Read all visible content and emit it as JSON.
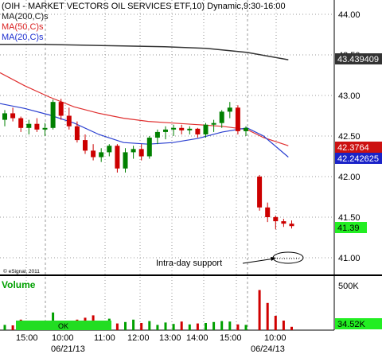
{
  "header": {
    "title": "(OIH - MARKET VECTORS OIL SERVICES ETF,10) Dynamic,9:30-16:00",
    "ma200_label": "MA(200,C)s",
    "ma50_label": "MA(50,C)s",
    "ma20_label": "MA(20,C)s"
  },
  "colors": {
    "background": "#ffffff",
    "grid": "#9a9a9a",
    "up_candle": "#008000",
    "down_candle": "#cc0000",
    "ma200": "#333333",
    "ma50": "#e03030",
    "ma20": "#2a3fd0",
    "volume_up": "#00a000",
    "volume_down": "#d00000",
    "ok_bar": "#22dd22",
    "last_price_bg": "#22ee22"
  },
  "price_axis": {
    "ticks": [
      "44.00",
      "43.50",
      "43.00",
      "42.50",
      "42.00",
      "41.50",
      "41.00"
    ],
    "ma200_value": "43.439409",
    "ma50_value": "42.3764",
    "ma20_value": "42.242625",
    "last_price": "41.39"
  },
  "annotations": {
    "support_label": "Intra-day support",
    "copyright": "© eSignal, 2011"
  },
  "volume": {
    "label": "Volume",
    "axis_top": "500K",
    "last_value": "34.52K",
    "ok_label": "OK"
  },
  "time_axis": {
    "ticks": [
      "15:00",
      "10:00",
      "11:00",
      "12:00",
      "13:00",
      "14:00",
      "15:00",
      "10:00"
    ],
    "dates": [
      "06/21/13",
      "06/24/13"
    ]
  },
  "chart_data": {
    "type": "candlestick",
    "title": "(OIH - MARKET VECTORS OIL SERVICES ETF,10) Dynamic,9:30-16:00",
    "ylim": [
      40.75,
      44.2
    ],
    "candles": [
      {
        "o": 42.7,
        "h": 42.82,
        "l": 42.62,
        "c": 42.78
      },
      {
        "o": 42.78,
        "h": 42.85,
        "l": 42.68,
        "c": 42.72
      },
      {
        "o": 42.72,
        "h": 42.74,
        "l": 42.55,
        "c": 42.6
      },
      {
        "o": 42.6,
        "h": 42.7,
        "l": 42.52,
        "c": 42.65
      },
      {
        "o": 42.65,
        "h": 42.72,
        "l": 42.55,
        "c": 42.58
      },
      {
        "o": 42.58,
        "h": 42.66,
        "l": 42.5,
        "c": 42.6
      },
      {
        "o": 42.6,
        "h": 42.95,
        "l": 42.58,
        "c": 42.92
      },
      {
        "o": 42.92,
        "h": 42.96,
        "l": 42.7,
        "c": 42.75
      },
      {
        "o": 42.75,
        "h": 42.85,
        "l": 42.58,
        "c": 42.62
      },
      {
        "o": 42.62,
        "h": 42.68,
        "l": 42.42,
        "c": 42.45
      },
      {
        "o": 42.45,
        "h": 42.52,
        "l": 42.28,
        "c": 42.32
      },
      {
        "o": 42.32,
        "h": 42.4,
        "l": 42.2,
        "c": 42.24
      },
      {
        "o": 42.24,
        "h": 42.35,
        "l": 42.18,
        "c": 42.3
      },
      {
        "o": 42.3,
        "h": 42.4,
        "l": 42.25,
        "c": 42.38
      },
      {
        "o": 42.38,
        "h": 42.4,
        "l": 42.05,
        "c": 42.1
      },
      {
        "o": 42.1,
        "h": 42.35,
        "l": 42.05,
        "c": 42.3
      },
      {
        "o": 42.3,
        "h": 42.38,
        "l": 42.22,
        "c": 42.34
      },
      {
        "o": 42.34,
        "h": 42.4,
        "l": 42.2,
        "c": 42.25
      },
      {
        "o": 42.25,
        "h": 42.5,
        "l": 42.22,
        "c": 42.48
      },
      {
        "o": 42.48,
        "h": 42.58,
        "l": 42.4,
        "c": 42.55
      },
      {
        "o": 42.55,
        "h": 42.62,
        "l": 42.46,
        "c": 42.58
      },
      {
        "o": 42.58,
        "h": 42.64,
        "l": 42.5,
        "c": 42.6
      },
      {
        "o": 42.6,
        "h": 42.64,
        "l": 42.52,
        "c": 42.57
      },
      {
        "o": 42.57,
        "h": 42.62,
        "l": 42.52,
        "c": 42.59
      },
      {
        "o": 42.59,
        "h": 42.6,
        "l": 42.48,
        "c": 42.52
      },
      {
        "o": 42.52,
        "h": 42.66,
        "l": 42.48,
        "c": 42.64
      },
      {
        "o": 42.64,
        "h": 42.7,
        "l": 42.55,
        "c": 42.66
      },
      {
        "o": 42.66,
        "h": 42.82,
        "l": 42.6,
        "c": 42.8
      },
      {
        "o": 42.8,
        "h": 42.92,
        "l": 42.72,
        "c": 42.85
      },
      {
        "o": 42.85,
        "h": 42.88,
        "l": 42.52,
        "c": 42.56
      },
      {
        "o": 42.56,
        "h": 42.62,
        "l": 42.5,
        "c": 42.6
      },
      {
        "o": 42.0,
        "h": 42.02,
        "l": 41.58,
        "c": 41.62
      },
      {
        "o": 41.62,
        "h": 41.68,
        "l": 41.44,
        "c": 41.5
      },
      {
        "o": 41.5,
        "h": 41.52,
        "l": 41.35,
        "c": 41.45
      },
      {
        "o": 41.45,
        "h": 41.48,
        "l": 41.38,
        "c": 41.42
      },
      {
        "o": 41.42,
        "h": 41.46,
        "l": 41.36,
        "c": 41.39
      }
    ],
    "volume": [
      55,
      50,
      110,
      70,
      90,
      60,
      185,
      100,
      70,
      110,
      130,
      155,
      90,
      120,
      70,
      85,
      110,
      75,
      95,
      55,
      80,
      65,
      90,
      60,
      70,
      75,
      85,
      95,
      90,
      60,
      55,
      420,
      285,
      150,
      100,
      35
    ],
    "ma200": [
      [
        0,
        43.63
      ],
      [
        5,
        43.63
      ],
      [
        10,
        43.62
      ],
      [
        15,
        43.61
      ],
      [
        20,
        43.6
      ],
      [
        25,
        43.58
      ],
      [
        30,
        43.53
      ],
      [
        35,
        43.44
      ]
    ],
    "ma50": [
      [
        0,
        43.28
      ],
      [
        3,
        43.12
      ],
      [
        6,
        42.98
      ],
      [
        9,
        42.86
      ],
      [
        12,
        42.78
      ],
      [
        15,
        42.72
      ],
      [
        18,
        42.68
      ],
      [
        21,
        42.66
      ],
      [
        24,
        42.64
      ],
      [
        27,
        42.62
      ],
      [
        30,
        42.58
      ],
      [
        32,
        42.48
      ],
      [
        35,
        42.38
      ]
    ],
    "ma20": [
      [
        0,
        42.9
      ],
      [
        3,
        42.84
      ],
      [
        6,
        42.76
      ],
      [
        9,
        42.66
      ],
      [
        12,
        42.52
      ],
      [
        15,
        42.42
      ],
      [
        18,
        42.4
      ],
      [
        21,
        42.42
      ],
      [
        24,
        42.47
      ],
      [
        27,
        42.55
      ],
      [
        30,
        42.6
      ],
      [
        32,
        42.5
      ],
      [
        35,
        42.24
      ]
    ]
  }
}
